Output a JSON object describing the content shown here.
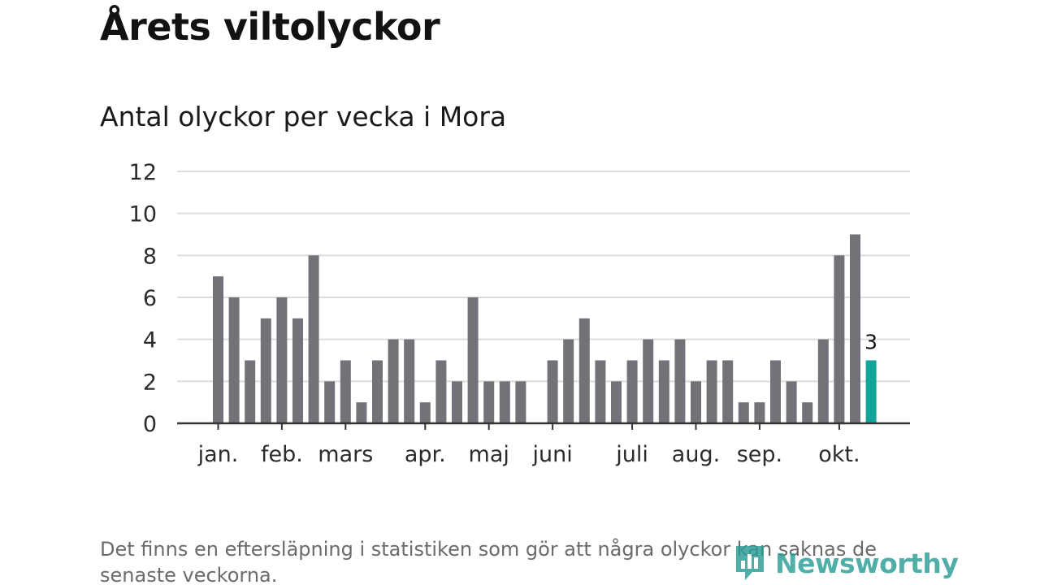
{
  "title": "Årets viltolyckor",
  "subtitle": "Antal olyckor per vecka i Mora",
  "note": "Det finns en eftersläpning i statistiken som gör att några olyckor kan saknas de senaste veckorna.",
  "logo": {
    "text": "Newsworthy",
    "icon": "bar-chart-icon",
    "color": "#2a9d96"
  },
  "colors": {
    "bar": "#737278",
    "highlight": "#12a39a",
    "grid": "#dcdcdc",
    "axis": "#333333",
    "text": "#2b2b2b"
  },
  "chart_data": {
    "type": "bar",
    "title": "Antal olyckor per vecka i Mora",
    "xlabel": "",
    "ylabel": "",
    "ylim": [
      0,
      12
    ],
    "yticks": [
      0,
      2,
      4,
      6,
      8,
      10,
      12
    ],
    "grid": true,
    "weeks": [
      1,
      2,
      3,
      4,
      5,
      6,
      7,
      8,
      9,
      10,
      11,
      12,
      13,
      14,
      15,
      16,
      17,
      18,
      19,
      20,
      21,
      22,
      23,
      24,
      25,
      26,
      27,
      28,
      29,
      30,
      31,
      32,
      33,
      34,
      35,
      36,
      37,
      38,
      39,
      40,
      41,
      42
    ],
    "values": [
      7,
      6,
      3,
      5,
      6,
      5,
      8,
      2,
      3,
      1,
      3,
      4,
      4,
      1,
      3,
      2,
      6,
      2,
      2,
      2,
      0,
      3,
      4,
      5,
      3,
      2,
      3,
      4,
      3,
      4,
      2,
      3,
      3,
      1,
      1,
      3,
      2,
      1,
      4,
      8,
      9,
      3
    ],
    "highlight_index": 41,
    "highlight_label": "3",
    "month_ticks": [
      {
        "label": "jan.",
        "week": 1
      },
      {
        "label": "feb.",
        "week": 5
      },
      {
        "label": "mars",
        "week": 9
      },
      {
        "label": "apr.",
        "week": 14
      },
      {
        "label": "maj",
        "week": 18
      },
      {
        "label": "juni",
        "week": 22
      },
      {
        "label": "juli",
        "week": 27
      },
      {
        "label": "aug.",
        "week": 31
      },
      {
        "label": "sep.",
        "week": 35
      },
      {
        "label": "okt.",
        "week": 40
      }
    ]
  }
}
